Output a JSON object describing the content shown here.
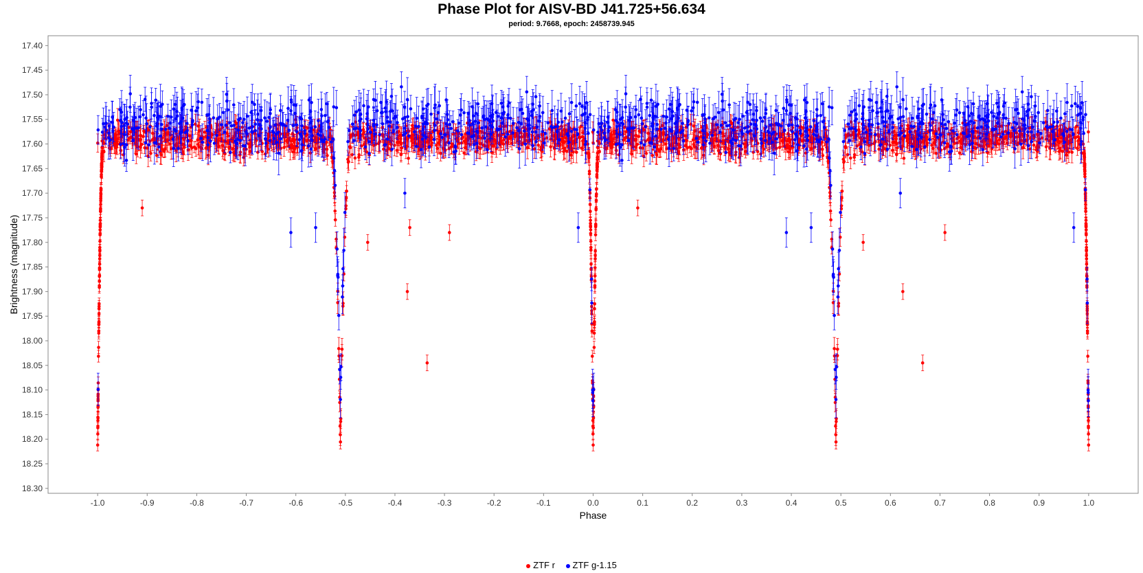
{
  "chart_data": {
    "type": "scatter",
    "title": "Phase Plot for AISV-BD J41.725+56.634",
    "subtitle": "period: 9.7668, epoch: 2458739.945",
    "xlabel": "Phase",
    "ylabel": "Brightness (magnitude)",
    "xlim": [
      -1.1,
      1.1
    ],
    "ylim": [
      18.31,
      17.38
    ],
    "y_inverted": true,
    "xticks": [
      "-1.0",
      "-0.9",
      "-0.8",
      "-0.7",
      "-0.6",
      "-0.5",
      "-0.4",
      "-0.3",
      "-0.2",
      "-0.1",
      "0.0",
      "0.1",
      "0.2",
      "0.3",
      "0.4",
      "0.5",
      "0.6",
      "0.7",
      "0.8",
      "0.9",
      "1.0"
    ],
    "yticks": [
      "17.40",
      "17.45",
      "17.50",
      "17.55",
      "17.60",
      "17.65",
      "17.70",
      "17.75",
      "17.80",
      "17.85",
      "17.90",
      "17.95",
      "18.00",
      "18.05",
      "18.10",
      "18.15",
      "18.20",
      "18.25",
      "18.30"
    ],
    "grid": false,
    "legend_position": "bottom",
    "series": [
      {
        "name": "ZTF r",
        "color": "#ff0000",
        "baseline": 17.59,
        "scatter": 0.03,
        "error": 0.016,
        "primary_eclipse_depth": 18.22,
        "secondary_eclipse_depth": 18.2,
        "outliers": [
          {
            "x": -0.455,
            "y": 17.8
          },
          {
            "x": -0.375,
            "y": 17.9
          },
          {
            "x": -0.335,
            "y": 18.045
          },
          {
            "x": -0.37,
            "y": 17.77
          },
          {
            "x": -0.29,
            "y": 17.78
          },
          {
            "x": -0.91,
            "y": 17.73
          },
          {
            "x": 0.545,
            "y": 17.8
          },
          {
            "x": 0.625,
            "y": 17.9
          },
          {
            "x": 0.665,
            "y": 18.045
          },
          {
            "x": 0.71,
            "y": 17.78
          },
          {
            "x": 0.09,
            "y": 17.73
          }
        ]
      },
      {
        "name": "ZTF g-1.15",
        "color": "#0000ff",
        "baseline": 17.56,
        "scatter": 0.05,
        "error": 0.03,
        "primary_eclipse_depth": 18.21,
        "secondary_eclipse_depth": 18.12,
        "outliers": [
          {
            "x": -0.61,
            "y": 17.78
          },
          {
            "x": -0.56,
            "y": 17.77
          },
          {
            "x": -0.38,
            "y": 17.7
          },
          {
            "x": -0.03,
            "y": 17.77
          },
          {
            "x": 0.39,
            "y": 17.78
          },
          {
            "x": 0.44,
            "y": 17.77
          },
          {
            "x": 0.62,
            "y": 17.7
          },
          {
            "x": 0.97,
            "y": 17.77
          }
        ]
      }
    ]
  }
}
